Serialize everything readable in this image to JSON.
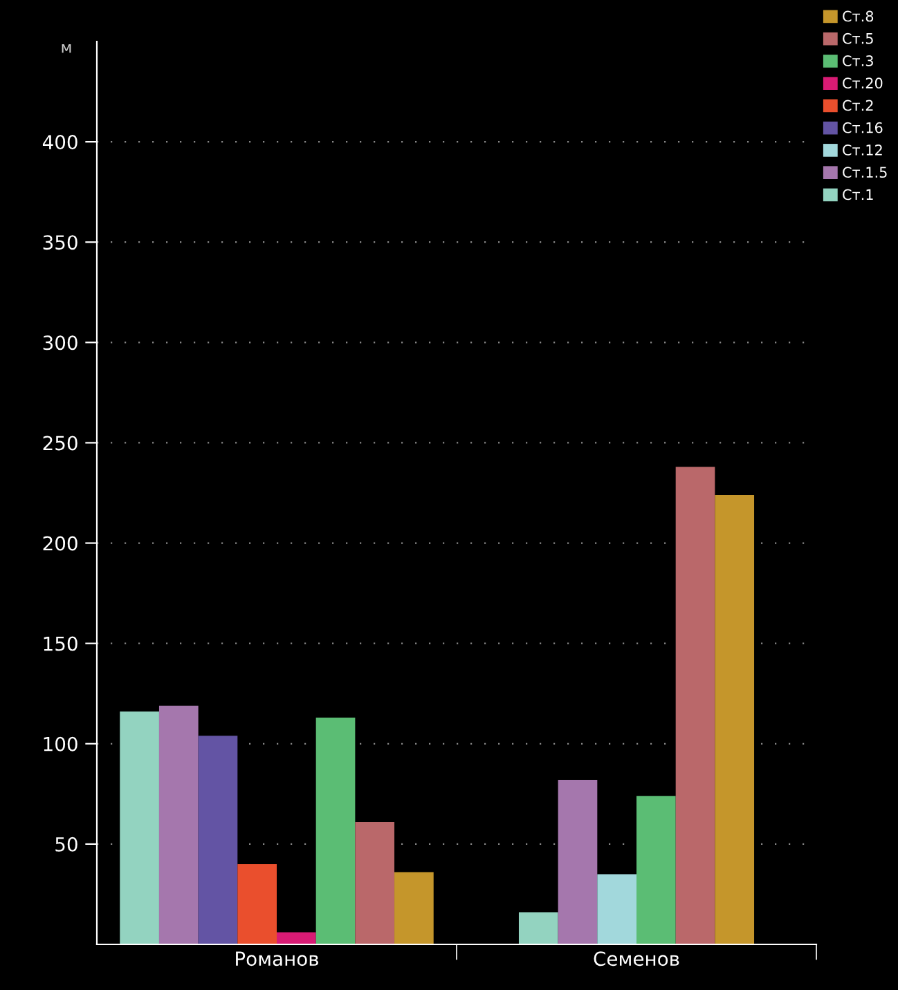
{
  "chart_data": {
    "type": "bar",
    "ylabel": "м",
    "categories": [
      "Романов",
      "Семенов"
    ],
    "series": [
      {
        "name": "Ст.1",
        "color": "#93d3c0",
        "values": [
          116,
          16
        ]
      },
      {
        "name": "Ст.1.5",
        "color": "#a577ad",
        "values": [
          119,
          82
        ]
      },
      {
        "name": "Ст.12",
        "color": "#a2d8dc",
        "values": [
          null,
          35
        ]
      },
      {
        "name": "Ст.16",
        "color": "#6354a4",
        "values": [
          104,
          null
        ]
      },
      {
        "name": "Ст.2",
        "color": "#ea4f2d",
        "values": [
          40,
          null
        ]
      },
      {
        "name": "Ст.20",
        "color": "#d81b74",
        "values": [
          6,
          null
        ]
      },
      {
        "name": "Ст.3",
        "color": "#5bbd74",
        "values": [
          113,
          74
        ]
      },
      {
        "name": "Ст.5",
        "color": "#ba686a",
        "values": [
          61,
          238
        ]
      },
      {
        "name": "Ст.8",
        "color": "#c5962b",
        "values": [
          36,
          224
        ]
      }
    ],
    "ylim": [
      0,
      450
    ],
    "yticks": [
      50,
      100,
      150,
      200,
      250,
      300,
      350,
      400
    ],
    "grid": "y",
    "legend": "top right"
  }
}
